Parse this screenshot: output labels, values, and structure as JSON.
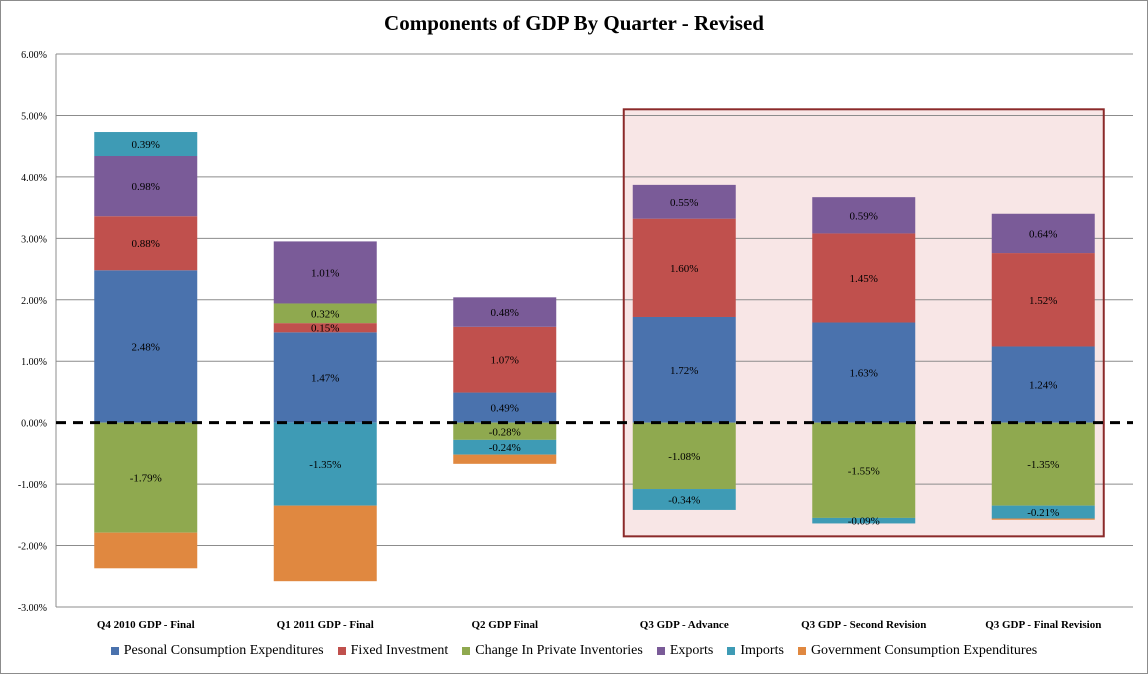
{
  "chart_data": {
    "type": "bar",
    "stacked": true,
    "title": "Components of GDP By Quarter - Revised",
    "xlabel": "",
    "ylabel": "",
    "ylim": [
      -3,
      6
    ],
    "y_ticks": [
      "-3.00%",
      "-2.00%",
      "-1.00%",
      "0.00%",
      "1.00%",
      "2.00%",
      "3.00%",
      "4.00%",
      "5.00%",
      "6.00%"
    ],
    "y_tick_values": [
      -3,
      -2,
      -1,
      0,
      1,
      2,
      3,
      4,
      5,
      6
    ],
    "grid": true,
    "legend_position": "bottom",
    "categories": [
      "Q4 2010 GDP - Final",
      "Q1 2011 GDP - Final",
      "Q2 GDP Final",
      "Q3 GDP - Advance",
      "Q3 GDP - Second Revision",
      "Q3 GDP - Final Revision"
    ],
    "series": [
      {
        "name": "Pesonal Consumption Expenditures",
        "color": "#4a72ad",
        "values": [
          2.48,
          1.47,
          0.49,
          1.72,
          1.63,
          1.24
        ],
        "labels": [
          "2.48%",
          "1.47%",
          "0.49%",
          "1.72%",
          "1.63%",
          "1.24%"
        ]
      },
      {
        "name": "Fixed Investment",
        "color": "#c0504d",
        "values": [
          0.88,
          0.15,
          1.07,
          1.6,
          1.45,
          1.52
        ],
        "labels": [
          "0.88%",
          "0.15%",
          "1.07%",
          "1.60%",
          "1.45%",
          "1.52%"
        ]
      },
      {
        "name": "Change In Private Inventories",
        "color": "#8fa94f",
        "values": [
          -1.79,
          0.32,
          -0.28,
          -1.08,
          -1.55,
          -1.35
        ],
        "labels": [
          "-1.79%",
          "0.32%",
          "-0.28%",
          "-1.08%",
          "-1.55%",
          "-1.35%"
        ]
      },
      {
        "name": "Exports",
        "color": "#7a5b98",
        "values": [
          0.98,
          1.01,
          0.48,
          0.55,
          0.59,
          0.64
        ],
        "labels": [
          "0.98%",
          "1.01%",
          "0.48%",
          "0.55%",
          "0.59%",
          "0.64%"
        ]
      },
      {
        "name": "Imports",
        "color": "#3e9bb5",
        "values": [
          0.39,
          -1.35,
          -0.24,
          -0.34,
          -0.09,
          -0.21
        ],
        "labels": [
          "0.39%",
          "-1.35%",
          "-0.24%",
          "-0.34%",
          "-0.09%",
          "-0.21%"
        ]
      },
      {
        "name": "Government Consumption Expenditures",
        "color": "#e08840",
        "values": [
          -0.58,
          -1.23,
          -0.15,
          0,
          0,
          -0.02
        ],
        "labels": [
          "",
          "",
          "",
          "",
          "",
          ""
        ]
      }
    ],
    "highlight": {
      "categories": [
        "Q3 GDP - Advance",
        "Q3 GDP - Second Revision",
        "Q3 GDP - Final Revision"
      ],
      "fill": "#f8e6e6",
      "stroke": "#8b2a2a",
      "y_range": [
        -1.85,
        5.1
      ]
    },
    "zero_line": {
      "style": "dashed",
      "color": "#000000"
    }
  },
  "colors": {
    "grid": "#8c8c8c",
    "text": "#000000"
  }
}
